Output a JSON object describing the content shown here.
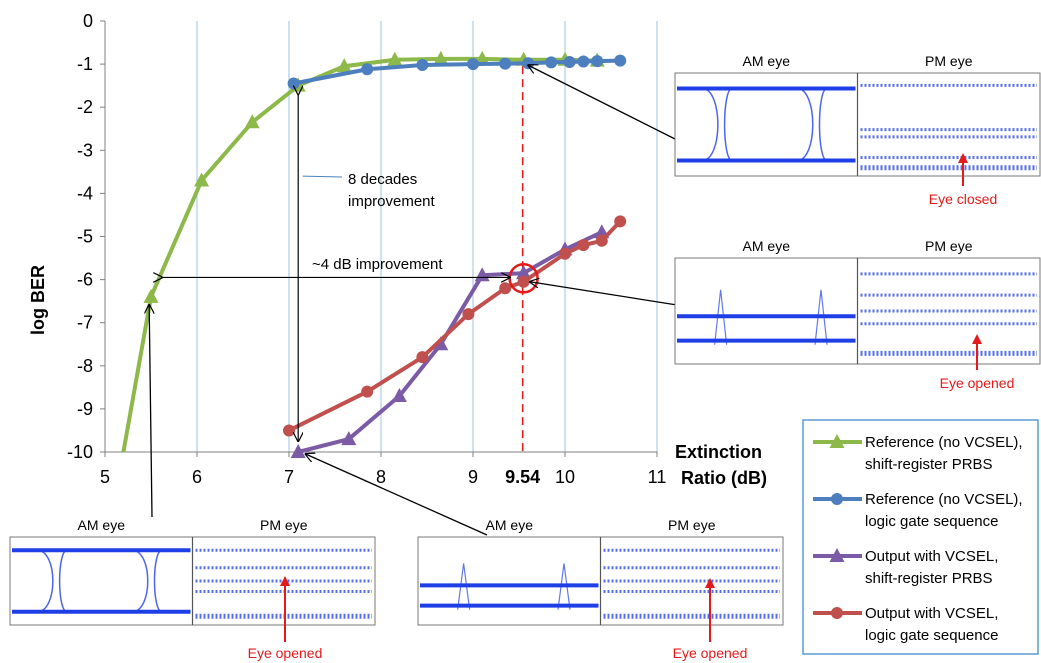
{
  "chart_data": {
    "type": "line",
    "title": "",
    "xlabel": "Extinction Ratio (dB)",
    "xlabel_lines": [
      "Extinction",
      "Ratio (dB)"
    ],
    "ylabel": "log BER",
    "xlim": [
      5,
      11
    ],
    "ylim": [
      -10,
      0
    ],
    "xticks": [
      "5",
      "6",
      "7",
      "8",
      "9",
      "10",
      "11"
    ],
    "yticks": [
      "0",
      "-1",
      "-2",
      "-3",
      "-4",
      "-5",
      "-6",
      "-7",
      "-8",
      "-9",
      "-10"
    ],
    "grid": "vertical",
    "legend_position": "right",
    "series": [
      {
        "name": "Reference (no VCSEL), shift-register PRBS",
        "legend_lines": [
          "Reference (no VCSEL),",
          "shift-register PRBS"
        ],
        "color": "#8db84a",
        "marker": "triangle",
        "x": [
          5.2,
          5.5,
          6.05,
          6.6,
          7.1,
          7.6,
          8.15,
          8.65,
          9.1,
          9.55,
          10.0,
          10.35
        ],
        "y": [
          -10.0,
          -6.4,
          -3.7,
          -2.35,
          -1.5,
          -1.05,
          -0.9,
          -0.88,
          -0.88,
          -0.9,
          -0.9,
          -0.92
        ],
        "marker_x": [
          5.5,
          6.05,
          6.6,
          7.1,
          7.6,
          8.15,
          8.65,
          9.1,
          9.55,
          10.0,
          10.35
        ],
        "marker_y": [
          -6.4,
          -3.7,
          -2.35,
          -1.5,
          -1.05,
          -0.9,
          -0.88,
          -0.88,
          -0.9,
          -0.9,
          -0.92
        ]
      },
      {
        "name": "Reference (no VCSEL), logic gate sequence",
        "legend_lines": [
          "Reference (no VCSEL),",
          "logic gate sequence"
        ],
        "color": "#4d7fbf",
        "marker": "circle",
        "x": [
          7.05,
          7.85,
          8.45,
          9.0,
          9.35,
          9.6,
          9.85,
          10.05,
          10.2,
          10.35,
          10.6
        ],
        "y": [
          -1.45,
          -1.12,
          -1.02,
          -1.0,
          -0.99,
          -0.98,
          -0.96,
          -0.95,
          -0.94,
          -0.93,
          -0.92
        ],
        "marker_x": [
          7.05,
          7.85,
          8.45,
          9.0,
          9.35,
          9.6,
          9.85,
          10.05,
          10.2,
          10.35,
          10.6
        ],
        "marker_y": [
          -1.45,
          -1.12,
          -1.02,
          -1.0,
          -0.99,
          -0.98,
          -0.96,
          -0.95,
          -0.94,
          -0.93,
          -0.92
        ]
      },
      {
        "name": "Output with VCSEL, shift-register PRBS",
        "legend_lines": [
          "Output with VCSEL,",
          "shift-register PRBS"
        ],
        "color": "#7b5ba6",
        "marker": "triangle",
        "x": [
          7.1,
          7.65,
          8.2,
          8.65,
          9.1,
          9.55,
          10.0,
          10.4
        ],
        "y": [
          -10.0,
          -9.7,
          -8.7,
          -7.5,
          -5.9,
          -5.85,
          -5.3,
          -4.9
        ],
        "marker_x": [
          7.1,
          7.65,
          8.2,
          8.65,
          9.1,
          9.55,
          10.0,
          10.4
        ],
        "marker_y": [
          -10.0,
          -9.7,
          -8.7,
          -7.5,
          -5.9,
          -5.85,
          -5.3,
          -4.9
        ]
      },
      {
        "name": "Output with VCSEL, logic gate sequence",
        "legend_lines": [
          "Output with VCSEL,",
          "logic gate sequence"
        ],
        "color": "#c0504d",
        "marker": "circle",
        "x": [
          7.0,
          7.85,
          8.45,
          8.95,
          9.35,
          9.55,
          10.0,
          10.2,
          10.4,
          10.6
        ],
        "y": [
          -9.5,
          -8.6,
          -7.8,
          -6.8,
          -6.2,
          -6.05,
          -5.4,
          -5.2,
          -5.1,
          -4.65
        ],
        "marker_x": [
          7.0,
          7.85,
          8.45,
          8.95,
          9.35,
          9.55,
          10.0,
          10.2,
          10.4,
          10.6
        ],
        "marker_y": [
          -9.5,
          -8.6,
          -7.8,
          -6.8,
          -6.2,
          -6.05,
          -5.4,
          -5.2,
          -5.1,
          -4.65
        ]
      }
    ],
    "reference_line": {
      "x": 9.54,
      "label": "9.54",
      "color": "#e31b1b"
    },
    "annotations": {
      "decades_line1": "8 decades",
      "decades_line2": "improvement",
      "db_improvement": "~4 dB improvement"
    },
    "eye_insets": [
      {
        "id": "top",
        "am_title": "AM eye",
        "pm_title": "PM eye",
        "caption": "Eye closed"
      },
      {
        "id": "middle",
        "am_title": "AM eye",
        "pm_title": "PM eye",
        "caption": "Eye opened"
      },
      {
        "id": "bottom-left",
        "am_title": "AM eye",
        "pm_title": "PM eye",
        "caption": "Eye opened"
      },
      {
        "id": "bottom-mid",
        "am_title": "AM eye",
        "pm_title": "PM eye",
        "caption": "Eye opened"
      }
    ],
    "colors": {
      "eye": "#1f3fe6",
      "caption": "#e31b1b",
      "grid": "#9dc3e6",
      "legend_border": "#5b9bd5"
    }
  }
}
